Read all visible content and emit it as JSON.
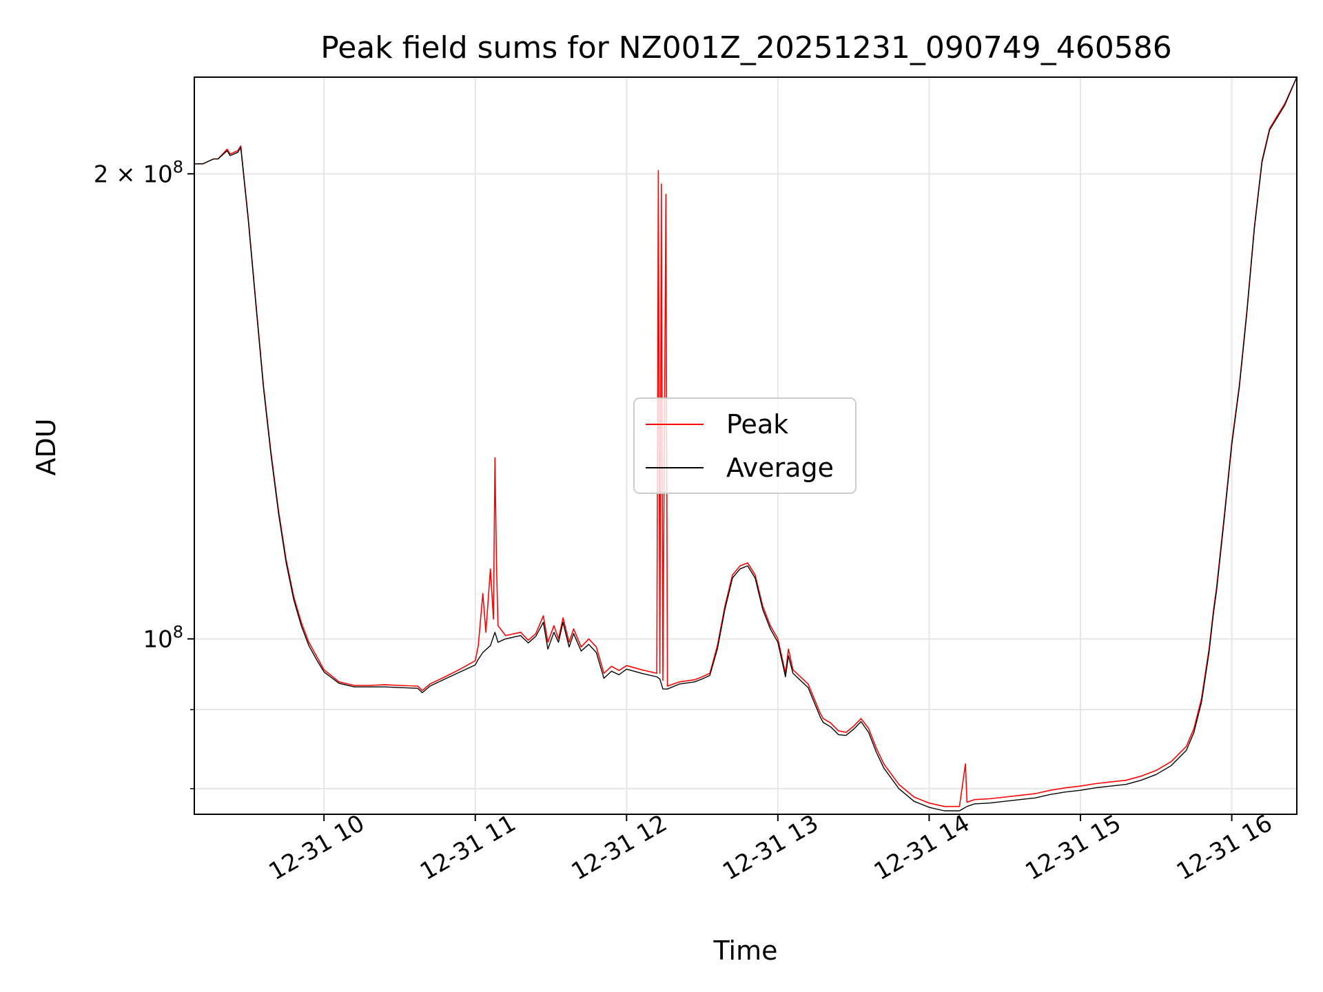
{
  "chart_data": {
    "type": "line",
    "title": "Peak field sums for NZ001Z_20251231_090749_460586",
    "xlabel": "Time",
    "ylabel": "ADU",
    "yscale": "log",
    "grid": true,
    "legend_position": "center",
    "xlim": [
      9.143,
      16.43
    ],
    "ylim": [
      77000000,
      231000000
    ],
    "x_unit": "hour of day (2025-12-31)",
    "x_ticks": [
      {
        "value": 10,
        "label": "12-31 10"
      },
      {
        "value": 11,
        "label": "12-31 11"
      },
      {
        "value": 12,
        "label": "12-31 12"
      },
      {
        "value": 13,
        "label": "12-31 13"
      },
      {
        "value": 14,
        "label": "12-31 14"
      },
      {
        "value": 15,
        "label": "12-31 15"
      },
      {
        "value": 16,
        "label": "12-31 16"
      }
    ],
    "y_ticks_major": [
      {
        "value": 100000000,
        "base": "10",
        "exp": "8",
        "coef": ""
      },
      {
        "value": 200000000,
        "base": "10",
        "exp": "8",
        "coef": "2 × "
      }
    ],
    "y_ticks_minor": [
      80000000,
      90000000
    ],
    "series": [
      {
        "name": "Peak",
        "color": "#ff0000",
        "points": [
          [
            9.143,
            203000000
          ],
          [
            9.2,
            203000000
          ],
          [
            9.27,
            204500000
          ],
          [
            9.3,
            204500000
          ],
          [
            9.36,
            207500000
          ],
          [
            9.38,
            206000000
          ],
          [
            9.43,
            207000000
          ],
          [
            9.45,
            208500000
          ],
          [
            9.5,
            187000000
          ],
          [
            9.55,
            165000000
          ],
          [
            9.6,
            146000000
          ],
          [
            9.65,
            132000000
          ],
          [
            9.7,
            121000000
          ],
          [
            9.75,
            112500000
          ],
          [
            9.8,
            106500000
          ],
          [
            9.85,
            102500000
          ],
          [
            9.9,
            99500000
          ],
          [
            9.95,
            97500000
          ],
          [
            10,
            95500000
          ],
          [
            10.1,
            93800000
          ],
          [
            10.2,
            93300000
          ],
          [
            10.3,
            93300000
          ],
          [
            10.4,
            93400000
          ],
          [
            10.5,
            93300000
          ],
          [
            10.62,
            93200000
          ],
          [
            10.65,
            92600000
          ],
          [
            10.7,
            93500000
          ],
          [
            10.8,
            94500000
          ],
          [
            10.9,
            95600000
          ],
          [
            11,
            96800000
          ],
          [
            11.02,
            99000000
          ],
          [
            11.05,
            107000000
          ],
          [
            11.07,
            101000000
          ],
          [
            11.1,
            111000000
          ],
          [
            11.12,
            103000000
          ],
          [
            11.13,
            131000000
          ],
          [
            11.14,
            112000000
          ],
          [
            11.15,
            102000000
          ],
          [
            11.2,
            100500000
          ],
          [
            11.3,
            101000000
          ],
          [
            11.35,
            99800000
          ],
          [
            11.4,
            100800000
          ],
          [
            11.45,
            103500000
          ],
          [
            11.48,
            99500000
          ],
          [
            11.52,
            102000000
          ],
          [
            11.55,
            100000000
          ],
          [
            11.58,
            103200000
          ],
          [
            11.62,
            99500000
          ],
          [
            11.65,
            101500000
          ],
          [
            11.7,
            98800000
          ],
          [
            11.75,
            100000000
          ],
          [
            11.8,
            98800000
          ],
          [
            11.85,
            95000000
          ],
          [
            11.9,
            96000000
          ],
          [
            11.95,
            95400000
          ],
          [
            12,
            96100000
          ],
          [
            12.1,
            95500000
          ],
          [
            12.2,
            95000000
          ],
          [
            12.21,
            201000000
          ],
          [
            12.22,
            95000000
          ],
          [
            12.23,
            197000000
          ],
          [
            12.24,
            94000000
          ],
          [
            12.26,
            194000000
          ],
          [
            12.27,
            93200000
          ],
          [
            12.35,
            93800000
          ],
          [
            12.45,
            94100000
          ],
          [
            12.5,
            94500000
          ],
          [
            12.55,
            95000000
          ],
          [
            12.6,
            99000000
          ],
          [
            12.65,
            105000000
          ],
          [
            12.7,
            110000000
          ],
          [
            12.75,
            111500000
          ],
          [
            12.8,
            112000000
          ],
          [
            12.85,
            110000000
          ],
          [
            12.9,
            105000000
          ],
          [
            12.95,
            102000000
          ],
          [
            13,
            100000000
          ],
          [
            13.05,
            95000000
          ],
          [
            13.07,
            98500000
          ],
          [
            13.1,
            95500000
          ],
          [
            13.2,
            93500000
          ],
          [
            13.28,
            89500000
          ],
          [
            13.3,
            88800000
          ],
          [
            13.35,
            88200000
          ],
          [
            13.4,
            87200000
          ],
          [
            13.45,
            87000000
          ],
          [
            13.5,
            87800000
          ],
          [
            13.55,
            88800000
          ],
          [
            13.6,
            87500000
          ],
          [
            13.65,
            85000000
          ],
          [
            13.7,
            83000000
          ],
          [
            13.8,
            80500000
          ],
          [
            13.9,
            79000000
          ],
          [
            14,
            78300000
          ],
          [
            14.1,
            77900000
          ],
          [
            14.2,
            77900000
          ],
          [
            14.24,
            83000000
          ],
          [
            14.25,
            78400000
          ],
          [
            14.3,
            78700000
          ],
          [
            14.4,
            78800000
          ],
          [
            14.5,
            79000000
          ],
          [
            14.6,
            79200000
          ],
          [
            14.7,
            79400000
          ],
          [
            14.8,
            79800000
          ],
          [
            14.9,
            80100000
          ],
          [
            15,
            80300000
          ],
          [
            15.1,
            80600000
          ],
          [
            15.2,
            80800000
          ],
          [
            15.3,
            81000000
          ],
          [
            15.4,
            81500000
          ],
          [
            15.5,
            82200000
          ],
          [
            15.6,
            83300000
          ],
          [
            15.7,
            85200000
          ],
          [
            15.75,
            87500000
          ],
          [
            15.8,
            91500000
          ],
          [
            15.85,
            98500000
          ],
          [
            15.88,
            104500000
          ],
          [
            15.9,
            108000000
          ],
          [
            15.95,
            120000000
          ],
          [
            16,
            134000000
          ],
          [
            16.05,
            146000000
          ],
          [
            16.1,
            163000000
          ],
          [
            16.15,
            185000000
          ],
          [
            16.2,
            204000000
          ],
          [
            16.25,
            214000000
          ],
          [
            16.3,
            218000000
          ],
          [
            16.35,
            222000000
          ],
          [
            16.43,
            231000000
          ]
        ]
      },
      {
        "name": "Average",
        "color": "#000000",
        "points": [
          [
            9.143,
            203000000
          ],
          [
            9.2,
            203000000
          ],
          [
            9.27,
            204500000
          ],
          [
            9.3,
            204500000
          ],
          [
            9.36,
            207000000
          ],
          [
            9.38,
            205500000
          ],
          [
            9.43,
            206500000
          ],
          [
            9.45,
            208000000
          ],
          [
            9.5,
            186500000
          ],
          [
            9.55,
            164500000
          ],
          [
            9.6,
            145500000
          ],
          [
            9.65,
            131500000
          ],
          [
            9.7,
            120500000
          ],
          [
            9.75,
            112000000
          ],
          [
            9.8,
            106000000
          ],
          [
            9.85,
            102000000
          ],
          [
            9.9,
            99000000
          ],
          [
            9.95,
            97000000
          ],
          [
            10,
            95200000
          ],
          [
            10.1,
            93600000
          ],
          [
            10.2,
            93100000
          ],
          [
            10.3,
            93100000
          ],
          [
            10.4,
            93100000
          ],
          [
            10.5,
            93000000
          ],
          [
            10.62,
            92900000
          ],
          [
            10.65,
            92300000
          ],
          [
            10.7,
            93200000
          ],
          [
            10.8,
            94200000
          ],
          [
            10.9,
            95200000
          ],
          [
            11,
            96200000
          ],
          [
            11.02,
            97000000
          ],
          [
            11.05,
            98000000
          ],
          [
            11.1,
            99000000
          ],
          [
            11.13,
            101000000
          ],
          [
            11.15,
            99500000
          ],
          [
            11.2,
            100000000
          ],
          [
            11.3,
            100500000
          ],
          [
            11.35,
            99400000
          ],
          [
            11.4,
            100400000
          ],
          [
            11.45,
            102500000
          ],
          [
            11.48,
            98500000
          ],
          [
            11.52,
            101000000
          ],
          [
            11.55,
            99500000
          ],
          [
            11.58,
            102500000
          ],
          [
            11.62,
            98800000
          ],
          [
            11.65,
            100800000
          ],
          [
            11.7,
            98200000
          ],
          [
            11.75,
            99200000
          ],
          [
            11.8,
            98000000
          ],
          [
            11.85,
            94300000
          ],
          [
            11.9,
            95300000
          ],
          [
            11.95,
            94800000
          ],
          [
            12,
            95600000
          ],
          [
            12.1,
            95000000
          ],
          [
            12.2,
            94500000
          ],
          [
            12.22,
            94200000
          ],
          [
            12.24,
            92800000
          ],
          [
            12.27,
            92800000
          ],
          [
            12.35,
            93500000
          ],
          [
            12.45,
            93800000
          ],
          [
            12.5,
            94200000
          ],
          [
            12.55,
            94700000
          ],
          [
            12.6,
            98500000
          ],
          [
            12.65,
            104500000
          ],
          [
            12.7,
            109500000
          ],
          [
            12.75,
            111000000
          ],
          [
            12.8,
            111500000
          ],
          [
            12.85,
            109500000
          ],
          [
            12.9,
            104500000
          ],
          [
            12.95,
            101500000
          ],
          [
            13,
            99500000
          ],
          [
            13.05,
            94500000
          ],
          [
            13.07,
            97500000
          ],
          [
            13.1,
            95000000
          ],
          [
            13.2,
            93000000
          ],
          [
            13.28,
            89000000
          ],
          [
            13.3,
            88300000
          ],
          [
            13.35,
            87700000
          ],
          [
            13.4,
            86700000
          ],
          [
            13.45,
            86600000
          ],
          [
            13.5,
            87400000
          ],
          [
            13.55,
            88400000
          ],
          [
            13.6,
            87000000
          ],
          [
            13.65,
            84500000
          ],
          [
            13.7,
            82500000
          ],
          [
            13.8,
            80000000
          ],
          [
            13.9,
            78500000
          ],
          [
            14,
            77800000
          ],
          [
            14.1,
            77400000
          ],
          [
            14.2,
            77400000
          ],
          [
            14.25,
            77900000
          ],
          [
            14.3,
            78200000
          ],
          [
            14.4,
            78300000
          ],
          [
            14.5,
            78500000
          ],
          [
            14.6,
            78700000
          ],
          [
            14.7,
            78900000
          ],
          [
            14.8,
            79300000
          ],
          [
            14.9,
            79600000
          ],
          [
            15,
            79800000
          ],
          [
            15.1,
            80100000
          ],
          [
            15.2,
            80300000
          ],
          [
            15.3,
            80500000
          ],
          [
            15.4,
            81000000
          ],
          [
            15.5,
            81700000
          ],
          [
            15.6,
            82800000
          ],
          [
            15.7,
            84700000
          ],
          [
            15.75,
            87000000
          ],
          [
            15.8,
            91000000
          ],
          [
            15.85,
            98000000
          ],
          [
            15.88,
            104000000
          ],
          [
            15.9,
            107500000
          ],
          [
            15.95,
            119500000
          ],
          [
            16,
            133500000
          ],
          [
            16.05,
            145500000
          ],
          [
            16.1,
            162500000
          ],
          [
            16.15,
            184500000
          ],
          [
            16.2,
            203500000
          ],
          [
            16.25,
            213500000
          ],
          [
            16.3,
            217500000
          ],
          [
            16.35,
            221500000
          ],
          [
            16.43,
            231000000
          ]
        ]
      }
    ]
  }
}
